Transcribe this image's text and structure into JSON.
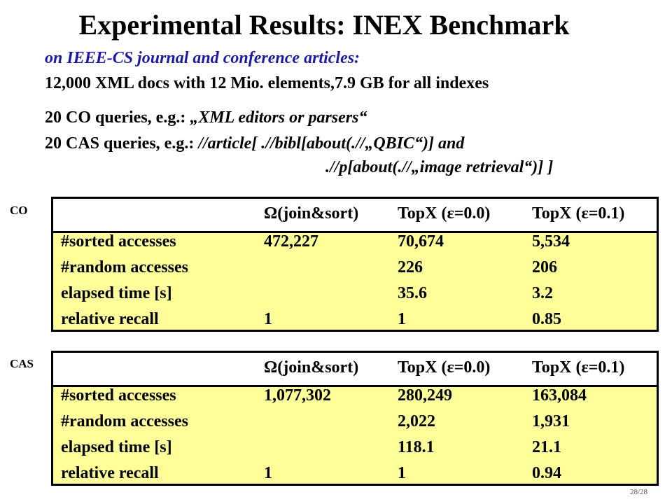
{
  "title": "Experimental Results: INEX Benchmark",
  "subtitle": "on IEEE-CS journal and conference articles:",
  "docs_line": "12,000 XML docs with 12 Mio. elements,7.9 GB for all indexes",
  "co_line": {
    "prefix": "20 CO queries, e.g.: ",
    "example": "„XML editors or parsers“"
  },
  "cas_line": {
    "prefix": "20 CAS queries, e.g.: ",
    "example": "//article[ .//bibl[about(.//„QBIC“)] and",
    "continuation": ".//p[about(.//„image retrieval“)] ]"
  },
  "co_table": {
    "label": "CO",
    "headers": [
      "",
      "Ω(join&sort)",
      "TopX (ε=0.0)",
      "TopX (ε=0.1)"
    ],
    "rows": [
      [
        "#sorted accesses",
        "472,227",
        "70,674",
        "5,534"
      ],
      [
        "#random accesses",
        "",
        "226",
        "206"
      ],
      [
        "elapsed time [s]",
        "",
        "35.6",
        "3.2"
      ],
      [
        "relative recall",
        "1",
        "1",
        "0.85"
      ]
    ]
  },
  "cas_table": {
    "label": "CAS",
    "headers": [
      "",
      "Ω(join&sort)",
      "TopX (ε=0.0)",
      "TopX (ε=0.1)"
    ],
    "rows": [
      [
        "#sorted accesses",
        "1,077,302",
        "280,249",
        "163,084"
      ],
      [
        "#random accesses",
        "",
        "2,022",
        "1,931"
      ],
      [
        "elapsed time [s]",
        "",
        "118.1",
        "21.1"
      ],
      [
        "relative recall",
        "1",
        "1",
        "0.94"
      ]
    ]
  },
  "page_number": "28/28",
  "colors": {
    "subtitle": "#1a1aa6",
    "table_body": "#ffff99"
  }
}
